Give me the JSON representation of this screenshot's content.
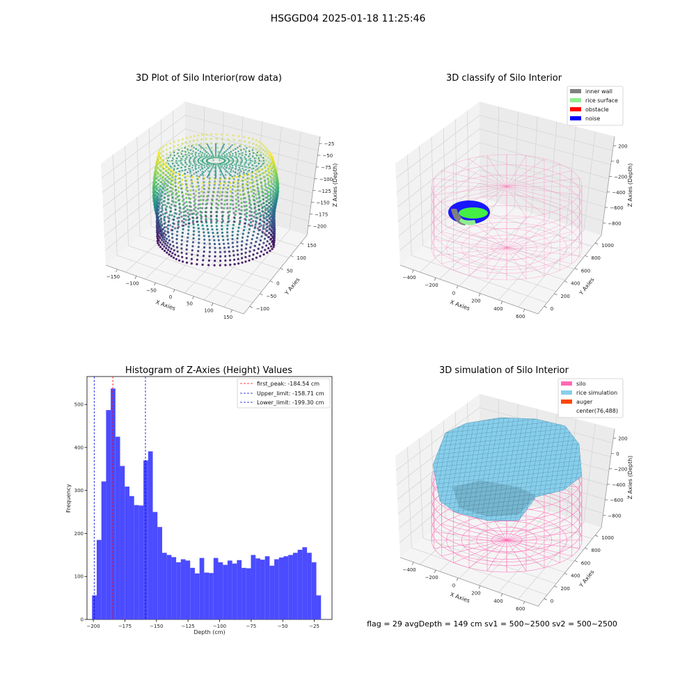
{
  "figure": {
    "suptitle": "HSGGD04 2025-01-18 11:25:46",
    "footer": "flag = 29  avgDepth = 149 cm  sv1 = 500~2500  sv2 = 500~2500"
  },
  "colors": {
    "histogram_bar": "#4b4bff",
    "first_peak_line": "#ff0000",
    "limit_line": "#0000cc",
    "pane": "#f2f2f2",
    "inner_wall": "#808080",
    "rice_surface": "#90ee90",
    "obstacle": "#ff0000",
    "noise": "#0000ff",
    "silo": "#ff69b4",
    "rice_simulation": "#87ceeb",
    "auger": "#ff4500"
  },
  "chart_data": [
    {
      "type": "scatter",
      "title": "3D Plot of Silo Interior(row data)",
      "xlabel": "X Axies",
      "ylabel": "Y Axies",
      "zlabel": "Z Axies (Depth)",
      "x_ticks": [
        "−150",
        "−100",
        "−50",
        "0",
        "50",
        "100",
        "150"
      ],
      "y_ticks": [
        "−100",
        "−50",
        "0",
        "50",
        "100",
        "150"
      ],
      "z_ticks": [
        "−25",
        "−50",
        "−75",
        "−100",
        "−125",
        "−150",
        "−175",
        "−200"
      ],
      "colormap": "viridis",
      "grid": true
    },
    {
      "type": "scatter",
      "title": "3D classify of Silo Interior",
      "xlabel": "X Axies",
      "ylabel": "Y Axies",
      "zlabel": "Z Axies (Depth)",
      "x_ticks": [
        "−400",
        "−200",
        "0",
        "200",
        "400",
        "600"
      ],
      "y_ticks": [
        "0",
        "200",
        "400",
        "600",
        "800",
        "1000"
      ],
      "z_ticks": [
        "200",
        "0",
        "−200",
        "−400",
        "−600",
        "−800"
      ],
      "legend": [
        "inner wall",
        "rice surface",
        "obstacle",
        "noise"
      ],
      "legend_loc": "upper right",
      "grid": true
    },
    {
      "type": "bar",
      "title": "Histogram of Z-Axies (Height) Values",
      "xlabel": "Depth (cm)",
      "ylabel": "Frequency",
      "xlim": [
        -205,
        -11
      ],
      "ylim": [
        0,
        565
      ],
      "x_ticks": [
        -200,
        -175,
        -150,
        -125,
        -100,
        -75,
        -50,
        -25
      ],
      "x_tick_labels": [
        "−200",
        "−175",
        "−150",
        "−125",
        "−100",
        "−75",
        "−50",
        "−25"
      ],
      "y_ticks": [
        0,
        100,
        200,
        300,
        400,
        500
      ],
      "bin_start": -201,
      "bin_width": 3.7,
      "values": [
        56,
        185,
        321,
        487,
        537,
        425,
        357,
        309,
        287,
        266,
        265,
        370,
        391,
        250,
        215,
        155,
        150,
        145,
        133,
        140,
        137,
        120,
        107,
        143,
        109,
        108,
        143,
        133,
        127,
        137,
        130,
        138,
        120,
        119,
        150,
        142,
        139,
        147,
        125,
        140,
        144,
        147,
        150,
        155,
        162,
        168,
        155,
        133,
        56
      ],
      "vlines": [
        {
          "name": "first_peak",
          "label": "first_peak: -184.54 cm",
          "x": -184.54,
          "color": "#ff0000"
        },
        {
          "name": "upper_limit",
          "label": "Upper_limit: -158.71 cm",
          "x": -158.71,
          "color": "#0000cc"
        },
        {
          "name": "lower_limit",
          "label": "Lower_limit: -199.30 cm",
          "x": -199.3,
          "color": "#0000cc"
        }
      ],
      "legend_loc": "upper right",
      "grid": false
    },
    {
      "type": "surface",
      "title": "3D simulation of Silo Interior",
      "xlabel": "X Axies",
      "ylabel": "Y Axies",
      "zlabel": "Z Axies (Depth)",
      "x_ticks": [
        "−400",
        "−200",
        "0",
        "200",
        "400",
        "600"
      ],
      "y_ticks": [
        "0",
        "200",
        "400",
        "600",
        "800",
        "1000"
      ],
      "z_ticks": [
        "200",
        "0",
        "−200",
        "−400",
        "−600",
        "−800"
      ],
      "legend": [
        "silo",
        "rice simulation",
        "auger",
        "center(76,488)"
      ],
      "legend_loc": "upper right",
      "grid": true
    }
  ]
}
